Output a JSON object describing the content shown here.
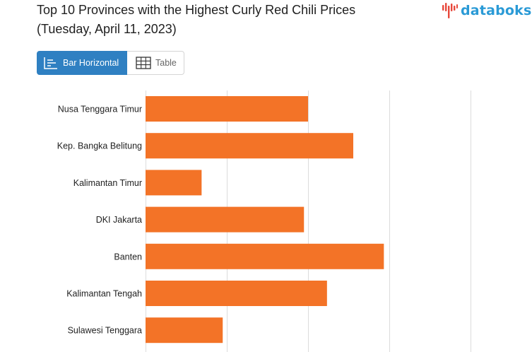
{
  "header": {
    "title_line1": "Top 10 Provinces with the Highest Curly Red Chili Prices",
    "title_line2": "(Tuesday, April 11, 2023)",
    "brand": "databoks"
  },
  "view_toggle": {
    "bar_label": "Bar Horizontal",
    "table_label": "Table",
    "selected": "Bar Horizontal"
  },
  "colors": {
    "bar": "#f37327",
    "grid": "#dcdcdc",
    "active_button": "#2f80c2",
    "brand_red": "#e8483b",
    "brand_blue": "#2a9ad6"
  },
  "icons": {
    "bar": "bar-chart-icon",
    "table": "table-grid-icon",
    "brand": "databoks-logo-icon"
  },
  "chart_data": {
    "type": "bar",
    "orientation": "horizontal",
    "categories": [
      "Nusa Tenggara Timur",
      "Kep. Bangka Belitung",
      "Kalimantan Timur",
      "DKI Jakarta",
      "Banten",
      "Kalimantan Tengah",
      "Sulawesi Tenggara"
    ],
    "values": [
      60000,
      76700,
      20700,
      58500,
      88000,
      67000,
      28500
    ],
    "xlim": [
      0,
      120000
    ],
    "grid": true
  }
}
